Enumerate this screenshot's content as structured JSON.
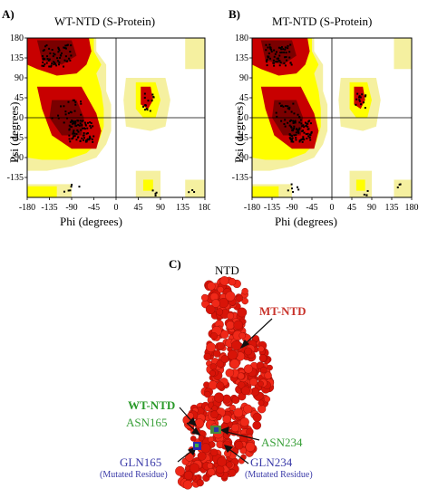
{
  "panels": {
    "A": {
      "letter": "A)",
      "title": "WT-NTD  (S-Protein)",
      "ylabel": "Psi (degrees)",
      "xlabel": "Phi (degrees)",
      "xticks": [
        "-180",
        "-135",
        "-90",
        "-45",
        "0",
        "45",
        "90",
        "135",
        "180"
      ],
      "yticks": [
        "180",
        "135",
        "90",
        "45",
        "0",
        "-45",
        "-90",
        "-135"
      ]
    },
    "B": {
      "letter": "B)",
      "title": "MT-NTD (S-Protein)",
      "ylabel": "Psi (degrees)",
      "xlabel": "Phi (degrees)",
      "xticks": [
        "-180",
        "-135",
        "-90",
        "-45",
        "0",
        "45",
        "90",
        "135",
        "180"
      ],
      "yticks": [
        "180",
        "135",
        "90",
        "45",
        "0",
        "-45",
        "-90",
        "-135"
      ]
    },
    "C": {
      "letter": "C)",
      "title": "NTD",
      "labels": {
        "mt": "MT-NTD",
        "wt": "WT-NTD",
        "asn165": "ASN165",
        "asn234": "ASN234",
        "gln165": "GLN165",
        "gln165_note": "(Mutated Residue)",
        "gln234": "GLN234",
        "gln234_note": "(Mutated Residue)"
      }
    }
  },
  "colors": {
    "core": "#c80000",
    "core_dark": "#7a0000",
    "allowed": "#ffff00",
    "generous": "#f5f0a0",
    "mt_label": "#c8322a",
    "wt_label": "#2a9a2a",
    "asn_label": "#3aa03a",
    "gln_label": "#3a3aa8",
    "protein": "#e01a10"
  }
}
